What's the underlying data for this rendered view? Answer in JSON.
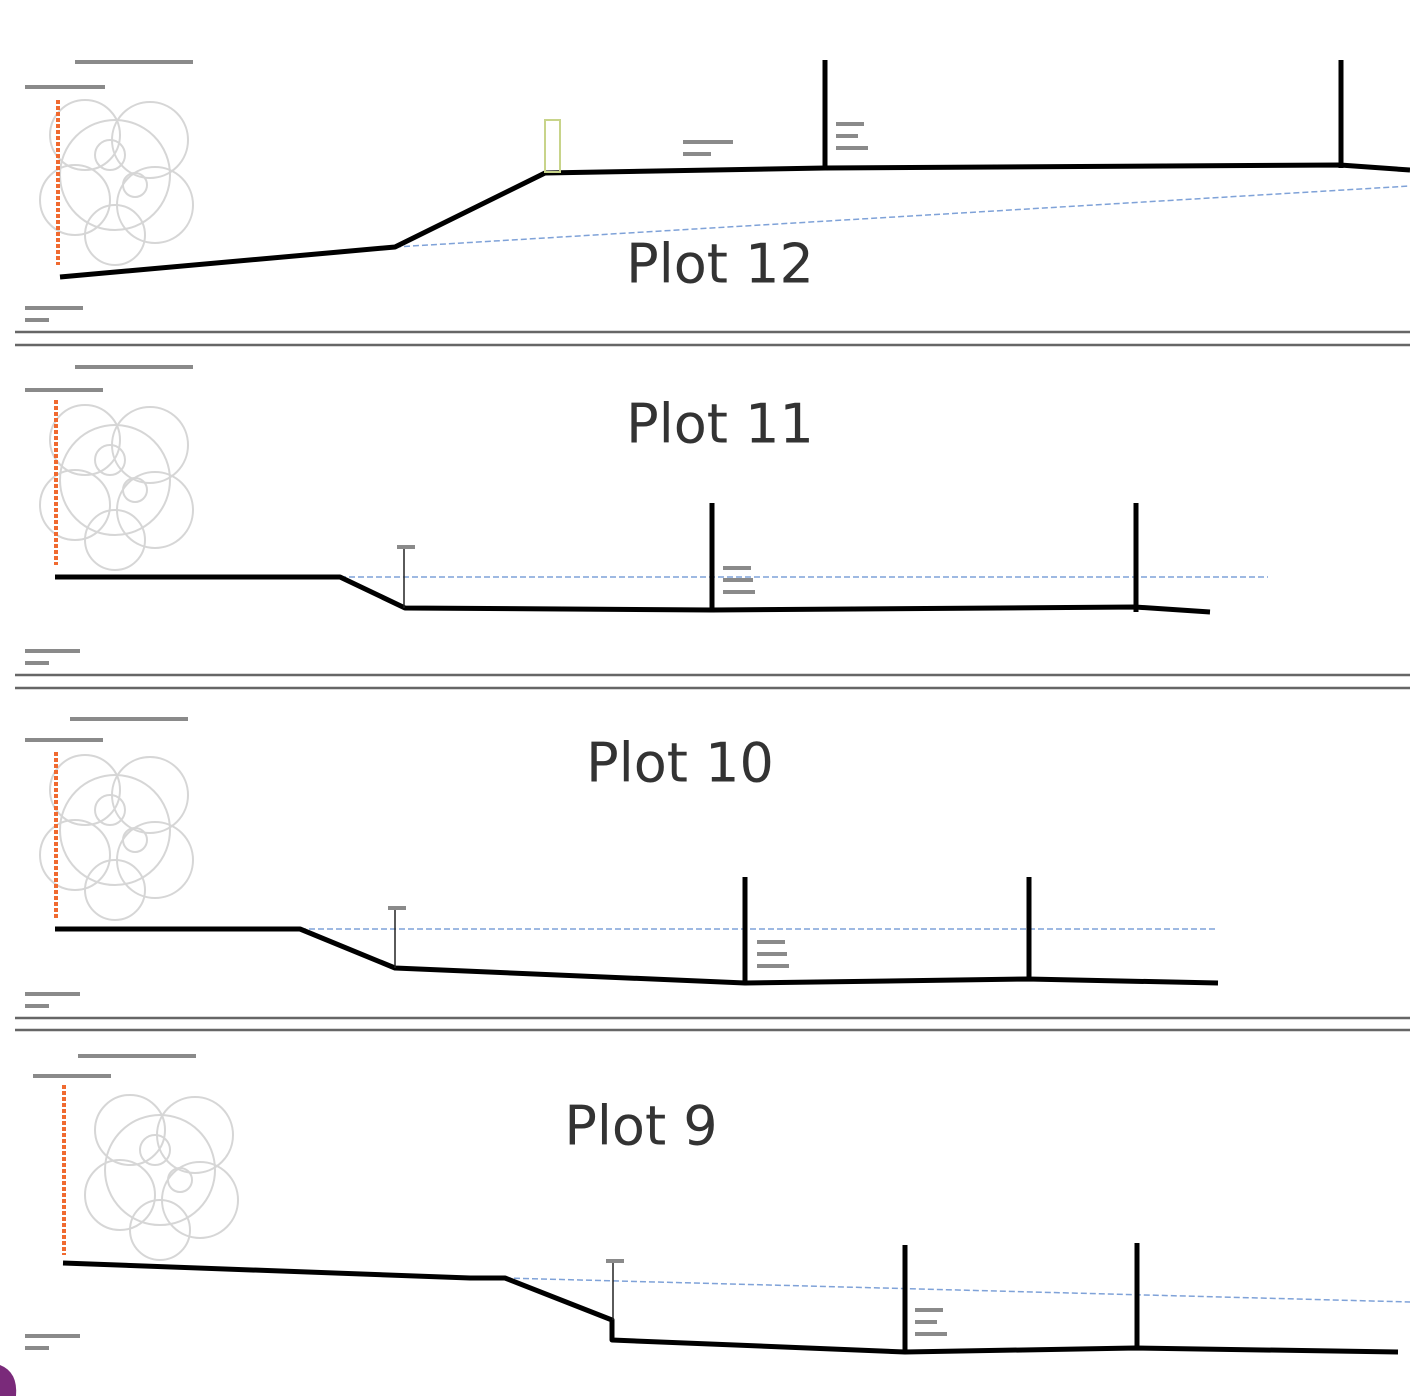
{
  "panels": [
    {
      "title": "Plot 12"
    },
    {
      "title": "Plot 11"
    },
    {
      "title": "Plot 10"
    },
    {
      "title": "Plot 9"
    }
  ]
}
